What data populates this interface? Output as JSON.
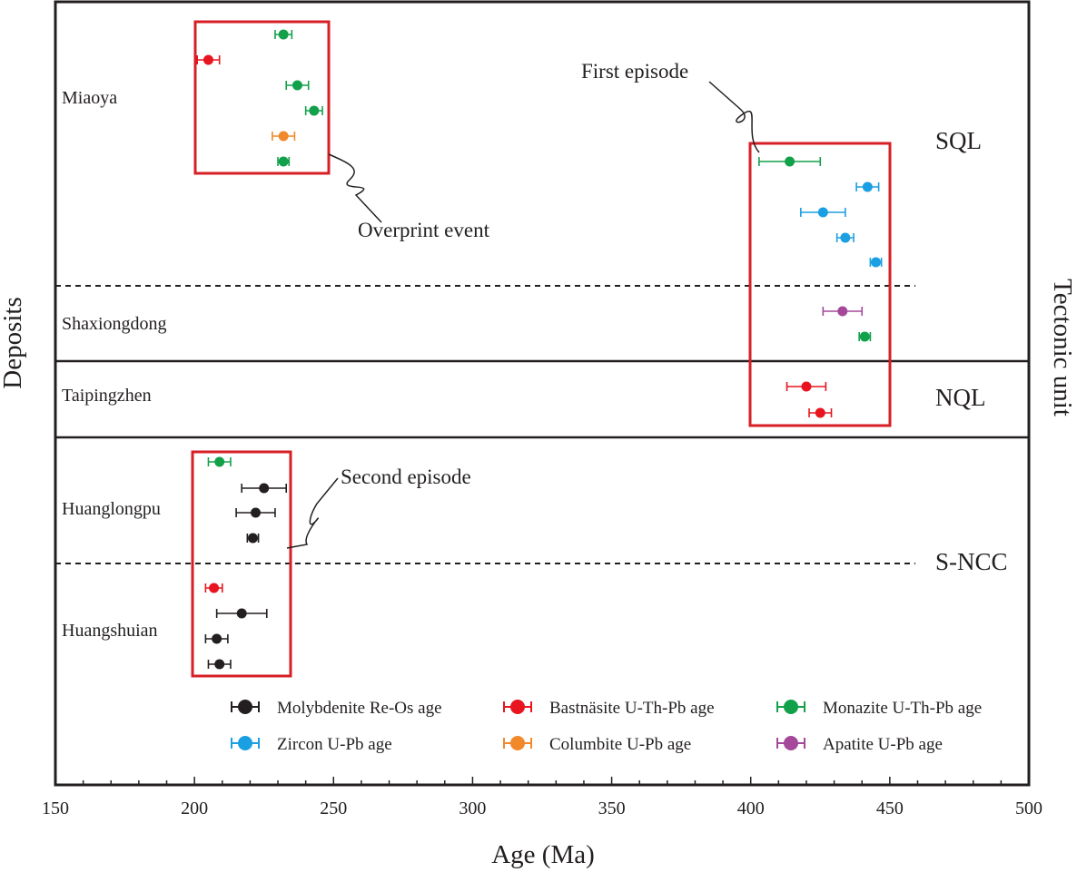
{
  "chart_data": {
    "type": "scatter",
    "xlabel": "Age (Ma)",
    "ylabel": "Deposits",
    "right_axis_label": "Tectonic unit",
    "xlim": [
      150,
      500
    ],
    "x_ticks": [
      "150",
      "200",
      "250",
      "300",
      "350",
      "400",
      "450",
      "500"
    ],
    "grid": false,
    "legend_position": "bottom-right",
    "deposits": [
      "Miaoya",
      "Shaxiongdong",
      "Taipingzhen",
      "Huanglongpu",
      "Huangshuian"
    ],
    "tectonic_units": [
      "SQL",
      "NQL",
      "S-NCC"
    ],
    "annotations": [
      "First episode",
      "Overprint event",
      "Second episode"
    ],
    "series": [
      {
        "name": "Molybdenite Re-Os age",
        "color": "#231f20",
        "points": [
          {
            "deposit": "Huanglongpu",
            "age": 225,
            "err": 8
          },
          {
            "deposit": "Huanglongpu",
            "age": 222,
            "err": 7
          },
          {
            "deposit": "Huanglongpu",
            "age": 221,
            "err": 2
          },
          {
            "deposit": "Huangshuian",
            "age": 217,
            "err": 9
          },
          {
            "deposit": "Huangshuian",
            "age": 208,
            "err": 4
          },
          {
            "deposit": "Huangshuian",
            "age": 209,
            "err": 4
          }
        ]
      },
      {
        "name": "Bastnäsite U-Th-Pb age",
        "color": "#e8141f",
        "points": [
          {
            "deposit": "Miaoya",
            "age": 205,
            "err": 4
          },
          {
            "deposit": "Taipingzhen",
            "age": 420,
            "err": 7
          },
          {
            "deposit": "Taipingzhen",
            "age": 425,
            "err": 4
          },
          {
            "deposit": "Huangshuian",
            "age": 207,
            "err": 3
          }
        ]
      },
      {
        "name": "Monazite U-Th-Pb age",
        "color": "#12a14a",
        "points": [
          {
            "deposit": "Miaoya",
            "age": 232,
            "err": 3
          },
          {
            "deposit": "Miaoya",
            "age": 237,
            "err": 4
          },
          {
            "deposit": "Miaoya",
            "age": 243,
            "err": 3
          },
          {
            "deposit": "Miaoya",
            "age": 232,
            "err": 2
          },
          {
            "deposit": "Miaoya",
            "age": 414,
            "err": 11
          },
          {
            "deposit": "Shaxiongdong",
            "age": 441,
            "err": 2
          },
          {
            "deposit": "Huanglongpu",
            "age": 209,
            "err": 4
          }
        ]
      },
      {
        "name": "Zircon U-Pb age",
        "color": "#1a9fe2",
        "points": [
          {
            "deposit": "Miaoya",
            "age": 442,
            "err": 4
          },
          {
            "deposit": "Miaoya",
            "age": 426,
            "err": 8
          },
          {
            "deposit": "Miaoya",
            "age": 434,
            "err": 3
          },
          {
            "deposit": "Miaoya",
            "age": 445,
            "err": 2
          }
        ]
      },
      {
        "name": "Columbite U-Pb age",
        "color": "#f1892a",
        "points": [
          {
            "deposit": "Miaoya",
            "age": 232,
            "err": 4
          }
        ]
      },
      {
        "name": "Apatite U-Pb age",
        "color": "#a5489a",
        "points": [
          {
            "deposit": "Shaxiongdong",
            "age": 433,
            "err": 7
          }
        ]
      }
    ]
  }
}
